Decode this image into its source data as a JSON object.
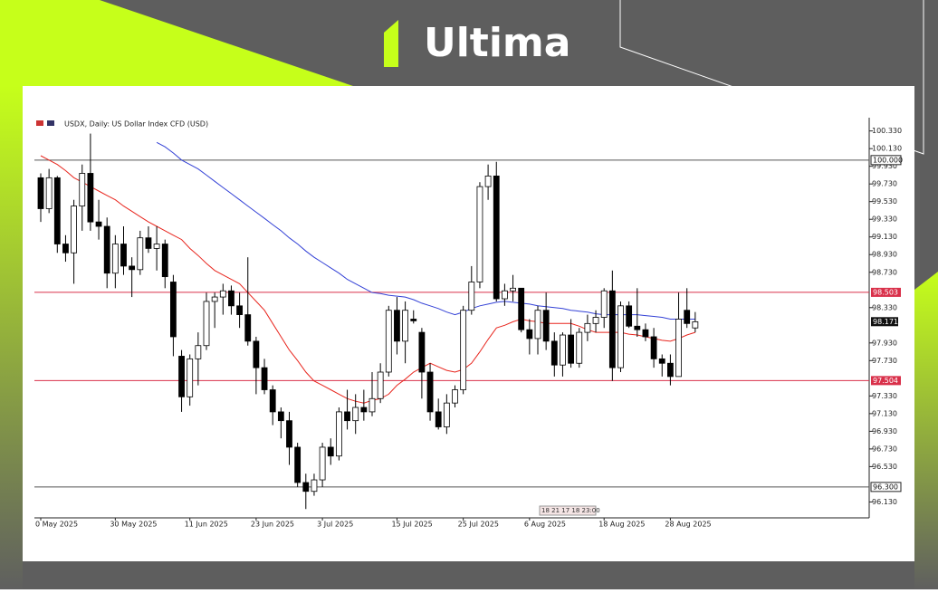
{
  "brand": "Ultima",
  "chart_data": {
    "type": "candlestick",
    "title": "USDX, Daily: US Dollar Index CFD (USD)",
    "categories": [
      "0 May 2025",
      null,
      null,
      null,
      null,
      null,
      null,
      null,
      null,
      "30 May 2025",
      null,
      null,
      null,
      null,
      null,
      null,
      null,
      null,
      "11 Jun 2025",
      null,
      null,
      null,
      null,
      null,
      null,
      null,
      "23 Jun 2025",
      null,
      null,
      null,
      null,
      null,
      null,
      null,
      "3 Jul 2025",
      null,
      null,
      null,
      null,
      null,
      null,
      null,
      null,
      "15 Jul 2025",
      null,
      null,
      null,
      null,
      null,
      null,
      null,
      "25 Jul 2025",
      null,
      null,
      null,
      null,
      null,
      null,
      null,
      "6 Aug 2025",
      null,
      null,
      null,
      null,
      null,
      null,
      null,
      null,
      "18 Aug 2025",
      null,
      null,
      null,
      null,
      null,
      null,
      null,
      "28 Aug 2025",
      null,
      null,
      null
    ],
    "open": [
      99.8,
      99.45,
      99.8,
      99.05,
      98.95,
      99.48,
      99.85,
      99.3,
      99.25,
      98.72,
      99.05,
      98.8,
      98.76,
      99.12,
      99.0,
      99.05,
      98.62,
      97.78,
      97.32,
      97.75,
      97.9,
      98.4,
      98.45,
      98.52,
      98.35,
      98.25,
      97.95,
      97.65,
      97.4,
      97.15,
      97.05,
      96.75,
      96.35,
      96.25,
      96.38,
      96.75,
      96.65,
      97.15,
      97.05,
      97.2,
      97.15,
      97.3,
      97.6,
      98.3,
      97.95,
      98.2,
      98.05,
      97.6,
      97.15,
      96.98,
      97.25,
      97.4,
      98.3,
      98.62,
      99.7,
      99.82,
      98.43,
      98.52,
      98.55,
      98.08,
      97.98,
      98.3,
      97.95,
      97.68,
      98.02,
      97.7,
      98.05,
      98.15,
      98.22,
      98.52,
      97.65,
      98.35,
      98.12,
      98.08,
      98.0,
      97.75,
      97.7,
      97.55,
      98.3,
      98.1
    ],
    "high": [
      99.85,
      99.9,
      99.82,
      99.15,
      99.55,
      99.95,
      100.3,
      99.55,
      99.35,
      99.15,
      99.25,
      98.9,
      99.2,
      99.25,
      99.25,
      99.1,
      98.7,
      97.85,
      97.8,
      98.05,
      98.5,
      98.5,
      98.6,
      98.58,
      98.5,
      98.9,
      98.0,
      97.75,
      97.45,
      97.2,
      97.15,
      96.8,
      96.45,
      96.45,
      96.8,
      96.85,
      97.2,
      97.4,
      97.35,
      97.4,
      97.6,
      97.7,
      98.35,
      98.45,
      98.4,
      98.3,
      98.1,
      97.7,
      97.3,
      97.35,
      97.45,
      98.35,
      98.8,
      99.75,
      99.95,
      99.98,
      98.6,
      98.7,
      98.55,
      98.2,
      98.35,
      98.5,
      98.05,
      98.05,
      98.2,
      98.1,
      98.25,
      98.3,
      98.55,
      98.75,
      98.4,
      98.4,
      98.55,
      98.15,
      98.1,
      97.8,
      97.8,
      98.5,
      98.55,
      98.28
    ],
    "low": [
      99.3,
      99.4,
      98.95,
      98.85,
      98.6,
      99.2,
      99.2,
      99.1,
      98.55,
      98.55,
      98.7,
      98.45,
      98.7,
      98.95,
      98.75,
      98.55,
      97.78,
      97.15,
      97.22,
      97.45,
      97.85,
      98.1,
      98.25,
      98.25,
      98.1,
      97.9,
      97.35,
      97.35,
      97.0,
      96.85,
      96.55,
      96.3,
      96.05,
      96.2,
      96.3,
      96.55,
      96.6,
      96.95,
      96.9,
      97.05,
      97.1,
      97.25,
      97.55,
      97.8,
      97.7,
      98.15,
      97.3,
      97.05,
      96.95,
      96.9,
      97.2,
      97.35,
      98.25,
      98.55,
      99.55,
      98.4,
      98.35,
      98.4,
      98.05,
      97.8,
      97.8,
      97.85,
      97.55,
      97.55,
      97.65,
      97.65,
      97.95,
      98.05,
      98.1,
      97.5,
      97.6,
      98.1,
      98.0,
      97.95,
      97.65,
      97.55,
      97.45,
      97.55,
      98.1,
      98.05
    ],
    "close": [
      99.45,
      99.8,
      99.05,
      98.95,
      99.48,
      99.85,
      99.3,
      99.25,
      98.72,
      99.05,
      98.8,
      98.76,
      99.12,
      99.0,
      99.05,
      98.68,
      98.0,
      97.32,
      97.75,
      97.9,
      98.4,
      98.45,
      98.52,
      98.35,
      98.25,
      97.95,
      97.65,
      97.4,
      97.15,
      97.05,
      96.75,
      96.35,
      96.25,
      96.38,
      96.75,
      96.65,
      97.15,
      97.05,
      97.2,
      97.15,
      97.3,
      97.6,
      98.3,
      97.95,
      98.3,
      98.18,
      97.6,
      97.15,
      96.98,
      97.25,
      97.4,
      98.3,
      98.62,
      99.7,
      99.82,
      98.43,
      98.52,
      98.55,
      98.08,
      97.98,
      98.3,
      97.95,
      97.68,
      98.02,
      97.7,
      98.05,
      98.15,
      98.22,
      98.52,
      97.65,
      98.35,
      98.12,
      98.08,
      98.0,
      97.75,
      97.7,
      97.55,
      98.2,
      98.15,
      98.17
    ],
    "lines": [
      {
        "color": "#e8261e",
        "values": [
          100.05,
          100.0,
          99.95,
          99.88,
          99.8,
          99.75,
          99.7,
          99.65,
          99.6,
          99.55,
          99.48,
          99.42,
          99.36,
          99.3,
          99.25,
          99.2,
          99.15,
          99.1,
          99.0,
          98.92,
          98.83,
          98.75,
          98.7,
          98.65,
          98.6,
          98.5,
          98.4,
          98.3,
          98.15,
          98.0,
          97.85,
          97.73,
          97.6,
          97.5,
          97.45,
          97.4,
          97.35,
          97.3,
          97.27,
          97.25,
          97.28,
          97.3,
          97.35,
          97.45,
          97.52,
          97.6,
          97.65,
          97.7,
          97.66,
          97.62,
          97.6,
          97.63,
          97.7,
          97.83,
          97.97,
          98.1,
          98.13,
          98.17,
          98.2,
          98.18,
          98.17,
          98.15,
          98.15,
          98.15,
          98.15,
          98.12,
          98.08,
          98.05,
          98.05,
          98.05,
          98.05,
          98.03,
          98.02,
          98.0,
          97.98,
          97.96,
          97.95,
          97.98,
          98.02,
          98.05
        ]
      },
      {
        "color": "#3341d6",
        "values": [
          null,
          null,
          null,
          null,
          null,
          null,
          null,
          null,
          null,
          null,
          null,
          null,
          null,
          null,
          100.2,
          100.15,
          100.08,
          100.0,
          99.95,
          99.9,
          99.83,
          99.76,
          99.69,
          99.62,
          99.55,
          99.48,
          99.41,
          99.34,
          99.27,
          99.2,
          99.12,
          99.05,
          98.97,
          98.9,
          98.84,
          98.78,
          98.72,
          98.65,
          98.6,
          98.55,
          98.5,
          98.49,
          98.47,
          98.46,
          98.45,
          98.42,
          98.38,
          98.35,
          98.32,
          98.28,
          98.25,
          98.28,
          98.32,
          98.35,
          98.37,
          98.39,
          98.4,
          98.39,
          98.38,
          98.37,
          98.35,
          98.34,
          98.33,
          98.32,
          98.3,
          98.29,
          98.28,
          98.26,
          98.25,
          98.25,
          98.25,
          98.25,
          98.25,
          98.24,
          98.23,
          98.22,
          98.2,
          98.2,
          98.2,
          98.2
        ]
      }
    ],
    "levels": [
      {
        "value": 100,
        "label": "100.000",
        "color": "#555555"
      },
      {
        "value": 98.503,
        "label": "98.503",
        "color": "#d9304a"
      },
      {
        "value": 97.504,
        "label": "97.504",
        "color": "#d9304a"
      },
      {
        "value": 96.3,
        "label": "96.300",
        "color": "#555555"
      }
    ],
    "current": 98.171,
    "time_marker": "18 21 17 18 23:00",
    "ylim": [
      95.95,
      100.48
    ],
    "yticks": [
      {
        "value": 100.33,
        "label": "100.330"
      },
      {
        "value": 100.13,
        "label": "100.130"
      },
      {
        "value": 99.93,
        "label": "99.930"
      },
      {
        "value": 99.73,
        "label": "99.730"
      },
      {
        "value": 99.53,
        "label": "99.530"
      },
      {
        "value": 99.33,
        "label": "99.330"
      },
      {
        "value": 99.13,
        "label": "99.130"
      },
      {
        "value": 98.93,
        "label": "98.930"
      },
      {
        "value": 98.73,
        "label": "98.730"
      },
      {
        "value": 98.33,
        "label": "98.330"
      },
      {
        "value": 97.93,
        "label": "97.930"
      },
      {
        "value": 97.73,
        "label": "97.730"
      },
      {
        "value": 97.33,
        "label": "97.330"
      },
      {
        "value": 97.13,
        "label": "97.130"
      },
      {
        "value": 96.93,
        "label": "96.930"
      },
      {
        "value": 96.73,
        "label": "96.730"
      },
      {
        "value": 96.53,
        "label": "96.530"
      },
      {
        "value": 96.13,
        "label": "96.130"
      }
    ]
  }
}
